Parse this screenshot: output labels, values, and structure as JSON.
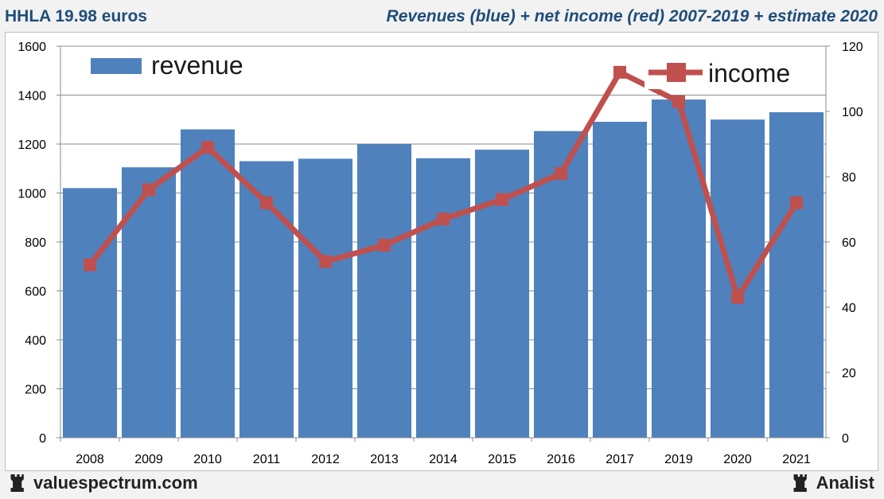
{
  "header": {
    "title_left": "HHLA 19.98 euros",
    "title_right": "Revenues (blue) + net income (red) 2007-2019 + estimate 2020"
  },
  "footer": {
    "site": "valuespectrum.com",
    "brand": "Analist"
  },
  "colors": {
    "revenue": "#4f81bd",
    "income": "#c0504d",
    "title": "#1f4e79"
  },
  "icons": {
    "footer_left": "rook-icon",
    "footer_right": "rook-icon"
  },
  "chart_data": {
    "type": "bar",
    "categories": [
      "2008",
      "2009",
      "2010",
      "2011",
      "2012",
      "2013",
      "2014",
      "2015",
      "2016",
      "2017",
      "2019",
      "2020",
      "2021"
    ],
    "series": [
      {
        "name": "revenue",
        "type": "bar",
        "axis": "left",
        "values": [
          1020,
          1105,
          1260,
          1130,
          1140,
          1200,
          1142,
          1177,
          1253,
          1291,
          1382,
          1300,
          1330
        ]
      },
      {
        "name": "income",
        "type": "line",
        "axis": "right",
        "values": [
          53,
          76,
          89,
          72,
          54,
          59,
          67,
          73,
          81,
          112,
          103,
          43,
          72
        ]
      }
    ],
    "y_left": {
      "min": 0,
      "max": 1600,
      "ticks": [
        0,
        200,
        400,
        600,
        800,
        1000,
        1200,
        1400,
        1600
      ]
    },
    "y_right": {
      "min": 0,
      "max": 120,
      "ticks": [
        0,
        20,
        40,
        60,
        80,
        100,
        120
      ]
    },
    "legend": [
      "revenue",
      "income"
    ],
    "grid": true
  }
}
